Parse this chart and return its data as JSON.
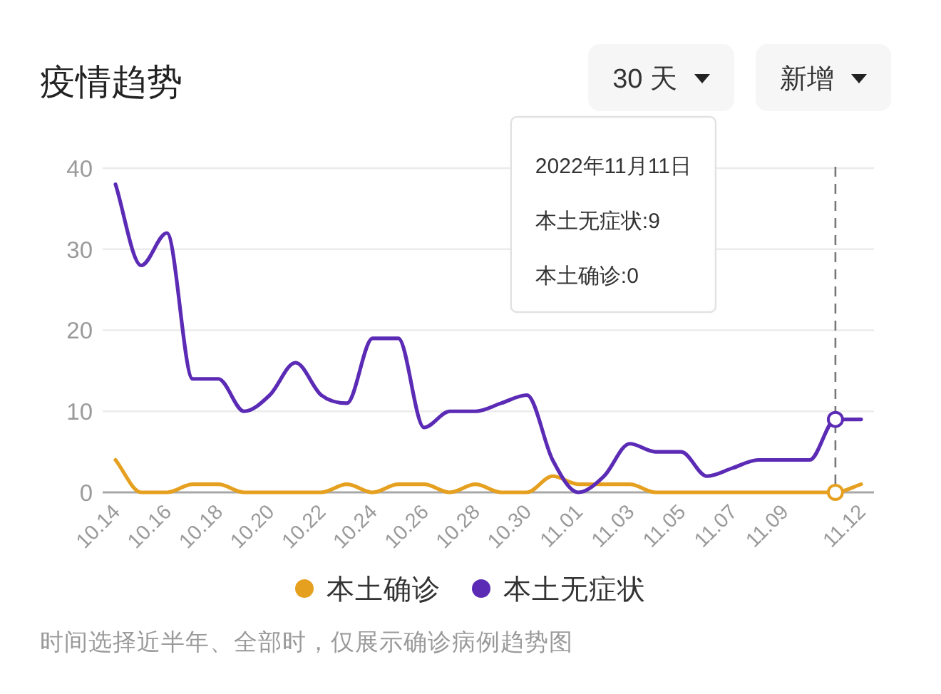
{
  "chart_data": {
    "type": "line",
    "title": "疫情趋势",
    "x": [
      "2022-10-14",
      "2022-10-15",
      "2022-10-16",
      "2022-10-17",
      "2022-10-18",
      "2022-10-19",
      "2022-10-20",
      "2022-10-21",
      "2022-10-22",
      "2022-10-23",
      "2022-10-24",
      "2022-10-25",
      "2022-10-26",
      "2022-10-27",
      "2022-10-28",
      "2022-10-29",
      "2022-10-30",
      "2022-10-31",
      "2022-11-01",
      "2022-11-02",
      "2022-11-03",
      "2022-11-04",
      "2022-11-05",
      "2022-11-06",
      "2022-11-07",
      "2022-11-08",
      "2022-11-09",
      "2022-11-10",
      "2022-11-11",
      "2022-11-12"
    ],
    "series": [
      {
        "name": "本土确诊",
        "color": "#e6a020",
        "values": [
          4,
          0,
          0,
          1,
          1,
          0,
          0,
          0,
          0,
          1,
          0,
          1,
          1,
          0,
          1,
          0,
          0,
          2,
          1,
          1,
          1,
          0,
          0,
          0,
          0,
          0,
          0,
          0,
          0,
          1
        ]
      },
      {
        "name": "本土无症状",
        "color": "#5b2bb5",
        "values": [
          38,
          28,
          32,
          14,
          14,
          10,
          12,
          16,
          12,
          11,
          19,
          19,
          8,
          10,
          10,
          11,
          12,
          4,
          0,
          2,
          6,
          5,
          5,
          2,
          3,
          4,
          4,
          4,
          9,
          9
        ]
      }
    ],
    "xlim": [
      "2022-10-13T12:00",
      "2022-11-12T12:00"
    ],
    "xticks": [
      {
        "value": "2022-10-14",
        "label": "10.14"
      },
      {
        "value": "2022-10-16",
        "label": "10.16"
      },
      {
        "value": "2022-10-18",
        "label": "10.18"
      },
      {
        "value": "2022-10-20",
        "label": "10.20"
      },
      {
        "value": "2022-10-22",
        "label": "10.22"
      },
      {
        "value": "2022-10-24",
        "label": "10.24"
      },
      {
        "value": "2022-10-26",
        "label": "10.26"
      },
      {
        "value": "2022-10-28",
        "label": "10.28"
      },
      {
        "value": "2022-10-30",
        "label": "10.30"
      },
      {
        "value": "2022-11-01",
        "label": "11.01"
      },
      {
        "value": "2022-11-03",
        "label": "11.03"
      },
      {
        "value": "2022-11-05",
        "label": "11.05"
      },
      {
        "value": "2022-11-07",
        "label": "11.07"
      },
      {
        "value": "2022-11-09",
        "label": "11.09"
      },
      {
        "value": "2022-11-12",
        "label": "11.12"
      }
    ],
    "ylim": [
      0,
      40
    ],
    "yticks": [
      0,
      10,
      20,
      30,
      40
    ],
    "grid": "y",
    "legend": "bottom",
    "ref_lines": [
      {
        "axis": "x",
        "value": "2022-11-11",
        "color": "#777777",
        "line_style": "dashed"
      }
    ],
    "annotations": [
      "30 天",
      "新增",
      "2022年11月11日",
      "本土无症状:9",
      "本土确诊:0",
      "时间选择近半年、全部时，仅展示确诊病例趋势图"
    ]
  }
}
